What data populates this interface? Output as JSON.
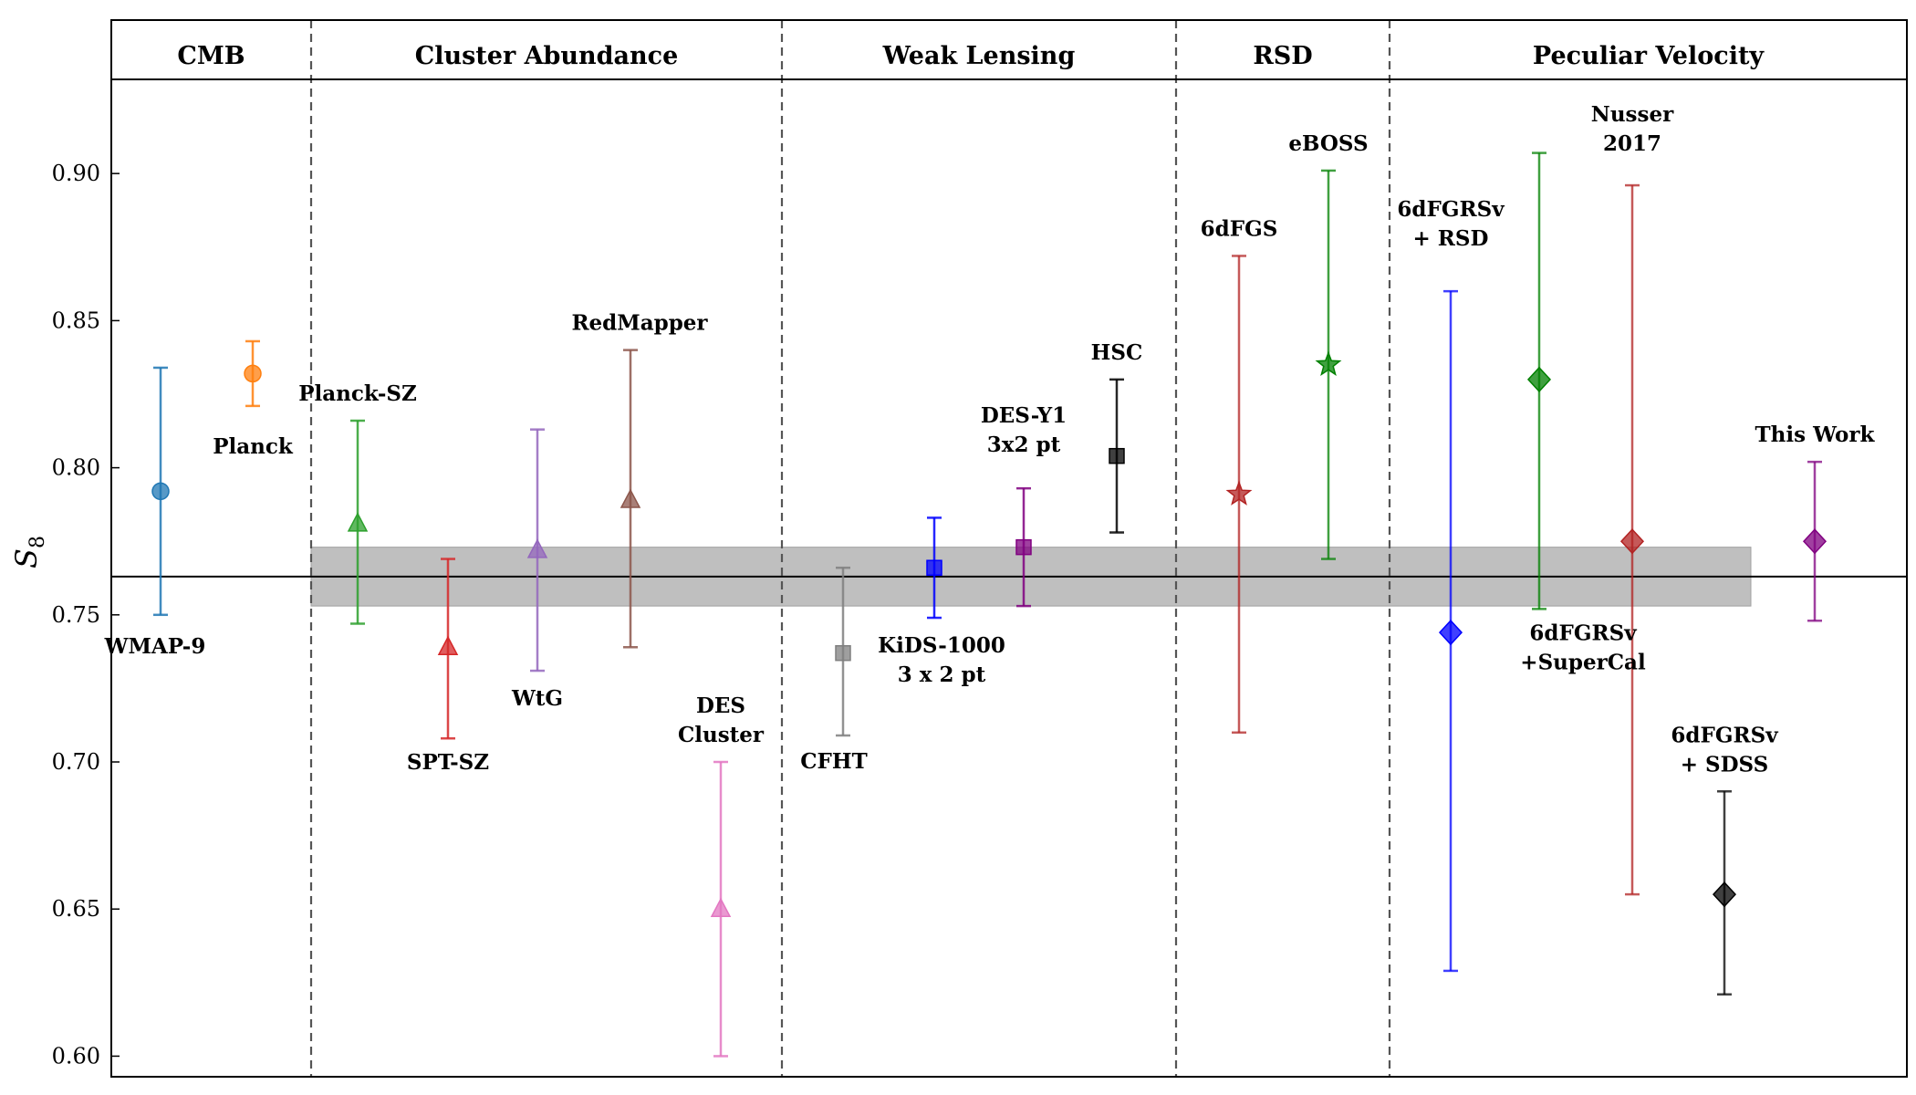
{
  "chart_data": {
    "type": "scatter",
    "ylabel": "S",
    "ylabel_subscript": "8",
    "ylim": [
      0.593,
      0.932
    ],
    "yticks": [
      "0.60",
      "0.65",
      "0.70",
      "0.75",
      "0.80",
      "0.85",
      "0.90"
    ],
    "ytick_values": [
      0.6,
      0.65,
      0.7,
      0.75,
      0.8,
      0.85,
      0.9
    ],
    "reference_line": 0.763,
    "reference_band": [
      0.753,
      0.773
    ],
    "band_color": "#bfbfbf",
    "sections": [
      {
        "name": "CMB"
      },
      {
        "name": "Cluster Abundance"
      },
      {
        "name": "Weak Lensing"
      },
      {
        "name": "RSD"
      },
      {
        "name": "Peculiar Velocity"
      }
    ],
    "series": [
      {
        "label": [
          "WMAP-9"
        ],
        "section": "CMB",
        "value": 0.792,
        "low": 0.75,
        "high": 0.834,
        "marker": "circle",
        "color": "#1f77b4",
        "label_pos": "below"
      },
      {
        "label": [
          "Planck"
        ],
        "section": "CMB",
        "value": 0.832,
        "low": 0.821,
        "high": 0.843,
        "marker": "circle",
        "color": "#ff7f0e",
        "label_pos": "below"
      },
      {
        "label": [
          "Planck-SZ"
        ],
        "section": "Cluster Abundance",
        "value": 0.781,
        "low": 0.747,
        "high": 0.816,
        "marker": "triangle",
        "color": "#2ca02c",
        "label_pos": "above"
      },
      {
        "label": [
          "SPT-SZ"
        ],
        "section": "Cluster Abundance",
        "value": 0.739,
        "low": 0.708,
        "high": 0.769,
        "marker": "triangle",
        "color": "#d62728",
        "label_pos": "below"
      },
      {
        "label": [
          "WtG"
        ],
        "section": "Cluster Abundance",
        "value": 0.772,
        "low": 0.731,
        "high": 0.813,
        "marker": "triangle",
        "color": "#9467bd",
        "label_pos": "below"
      },
      {
        "label": [
          "RedMapper"
        ],
        "section": "Cluster Abundance",
        "value": 0.789,
        "low": 0.739,
        "high": 0.84,
        "marker": "triangle",
        "color": "#8c564b",
        "label_pos": "above"
      },
      {
        "label": [
          "DES",
          "Cluster"
        ],
        "section": "Cluster Abundance",
        "value": 0.65,
        "low": 0.6,
        "high": 0.7,
        "marker": "triangle",
        "color": "#e377c2",
        "label_pos": "above"
      },
      {
        "label": [
          "CFHT"
        ],
        "section": "Weak Lensing",
        "value": 0.737,
        "low": 0.709,
        "high": 0.766,
        "marker": "square",
        "color": "#7f7f7f",
        "label_pos": "below"
      },
      {
        "label": [
          "KiDS-1000",
          "3 x 2 pt"
        ],
        "section": "Weak Lensing",
        "value": 0.766,
        "low": 0.749,
        "high": 0.783,
        "marker": "square",
        "color": "#0000ff",
        "label_pos": "below"
      },
      {
        "label": [
          "DES-Y1",
          "3x2 pt"
        ],
        "section": "Weak Lensing",
        "value": 0.773,
        "low": 0.753,
        "high": 0.793,
        "marker": "square",
        "color": "#800080",
        "label_pos": "above"
      },
      {
        "label": [
          "HSC"
        ],
        "section": "Weak Lensing",
        "value": 0.804,
        "low": 0.778,
        "high": 0.83,
        "marker": "square",
        "color": "#000000",
        "label_pos": "above"
      },
      {
        "label": [
          "6dFGS"
        ],
        "section": "RSD",
        "value": 0.791,
        "low": 0.71,
        "high": 0.872,
        "marker": "star",
        "color": "#b22222",
        "label_pos": "above"
      },
      {
        "label": [
          "eBOSS"
        ],
        "section": "RSD",
        "value": 0.835,
        "low": 0.769,
        "high": 0.901,
        "marker": "star",
        "color": "#008000",
        "label_pos": "above"
      },
      {
        "label": [
          "6dFGRSv",
          "+ RSD"
        ],
        "section": "Peculiar Velocity",
        "value": 0.744,
        "low": 0.629,
        "high": 0.86,
        "marker": "diamond",
        "color": "#0000ff",
        "label_pos": "above"
      },
      {
        "label": [
          "6dFGRSv",
          "+SuperCal"
        ],
        "section": "Peculiar Velocity",
        "value": 0.83,
        "low": 0.752,
        "high": 0.907,
        "marker": "diamond",
        "color": "#008000",
        "label_pos": "below"
      },
      {
        "label": [
          "Nusser",
          "2017"
        ],
        "section": "Peculiar Velocity",
        "value": 0.775,
        "low": 0.655,
        "high": 0.896,
        "marker": "diamond",
        "color": "#b22222",
        "label_pos": "above"
      },
      {
        "label": [
          "6dFGRSv",
          "+ SDSS"
        ],
        "section": "Peculiar Velocity",
        "value": 0.655,
        "low": 0.621,
        "high": 0.69,
        "marker": "diamond",
        "color": "#000000",
        "label_pos": "above"
      },
      {
        "label": [
          "This Work"
        ],
        "section": "Peculiar Velocity",
        "value": 0.775,
        "low": 0.748,
        "high": 0.802,
        "marker": "diamond",
        "color": "#800080",
        "label_pos": "above"
      }
    ]
  }
}
